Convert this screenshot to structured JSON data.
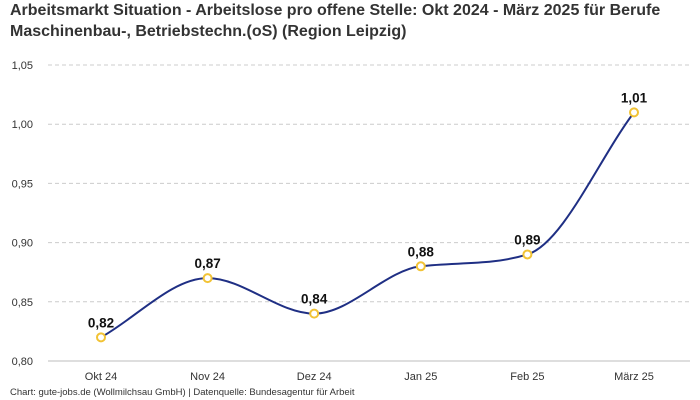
{
  "chart_data": {
    "type": "line",
    "title": "Arbeitsmarkt Situation - Arbeitslose pro offene Stelle: Okt 2024 - März 2025 für Berufe Maschinenbau-, Betriebstechn.(oS) (Region Leipzig)",
    "categories": [
      "Okt 24",
      "Nov 24",
      "Dez 24",
      "Jan 25",
      "Feb 25",
      "März 25"
    ],
    "series": [
      {
        "values": [
          0.82,
          0.87,
          0.84,
          0.88,
          0.89,
          1.01
        ],
        "data_labels": [
          "0,82",
          "0,87",
          "0,84",
          "0,88",
          "0,89",
          "1,01"
        ]
      }
    ],
    "y_ticks": [
      0.8,
      0.85,
      0.9,
      0.95,
      1.0,
      1.05
    ],
    "y_tick_labels": [
      "0,80",
      "0,85",
      "0,90",
      "0,95",
      "1,00",
      "1,05"
    ],
    "ylim": [
      0.8,
      1.05
    ],
    "grid": true,
    "xlabel": "",
    "ylabel": "",
    "line_color": "#1f2f84",
    "marker_color": "#f2c335",
    "source": "Chart: gute-jobs.de (Wollmilchsau GmbH) | Datenquelle: Bundesagentur für Arbeit"
  }
}
